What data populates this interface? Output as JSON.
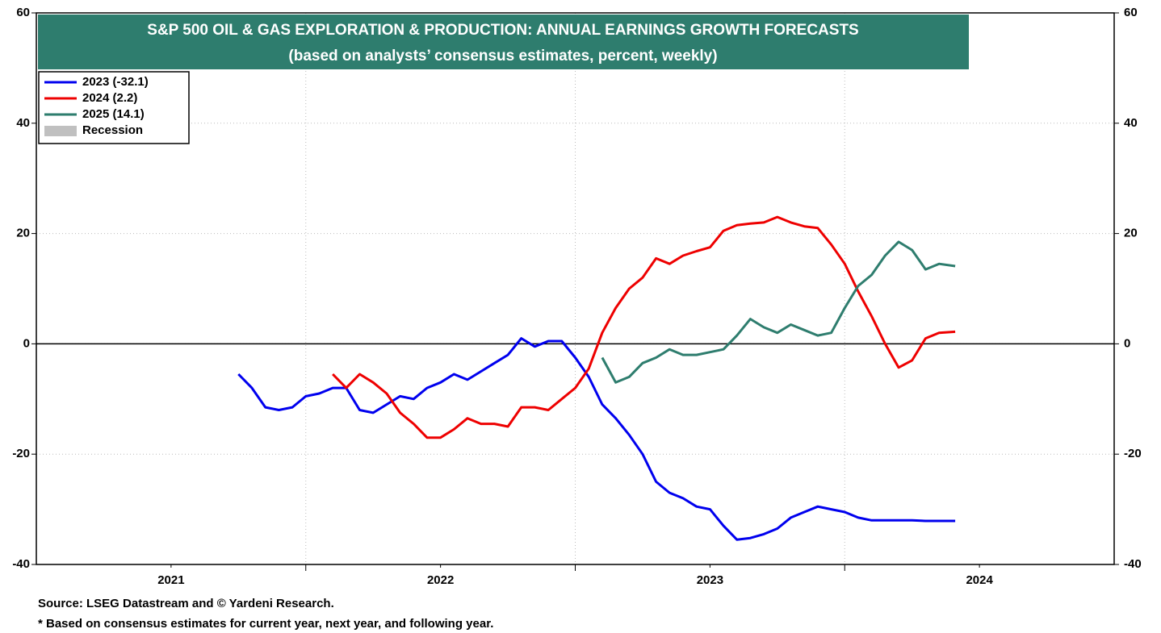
{
  "chart_data": {
    "type": "line",
    "title": "S&P 500  OIL & GAS EXPLORATION & PRODUCTION: ANNUAL EARNINGS GROWTH FORECASTS",
    "subtitle": "(based on analysts’ consensus estimates, percent, weekly)",
    "notes": [
      "Source: LSEG Datastream and © Yardeni Research.",
      "* Based on consensus estimates for current year, next year, and following year."
    ],
    "recession_label": "Recession",
    "recession_color": "#c0c0c0",
    "title_color": "#2e7d6e",
    "x": [
      2021.75,
      2021.8,
      2021.85,
      2021.9,
      2021.95,
      2022.0,
      2022.05,
      2022.1,
      2022.15,
      2022.2,
      2022.25,
      2022.3,
      2022.35,
      2022.4,
      2022.45,
      2022.5,
      2022.55,
      2022.6,
      2022.65,
      2022.7,
      2022.75,
      2022.8,
      2022.85,
      2022.9,
      2022.95,
      2023.0,
      2023.05,
      2023.1,
      2023.15,
      2023.2,
      2023.25,
      2023.3,
      2023.35,
      2023.4,
      2023.45,
      2023.5,
      2023.55,
      2023.6,
      2023.65,
      2023.7,
      2023.75,
      2023.8,
      2023.85,
      2023.9,
      2023.95,
      2024.0,
      2024.05,
      2024.1,
      2024.15,
      2024.2,
      2024.25,
      2024.3,
      2024.35,
      2024.41
    ],
    "series": [
      {
        "name": "2023 (-32.1)",
        "color": "#0000ee",
        "values": [
          -5.5,
          -8,
          -11.5,
          -12,
          -11.5,
          -9.5,
          -9,
          -8,
          -8,
          -12,
          -12.5,
          -11,
          -9.5,
          -10,
          -8,
          -7,
          -5.5,
          -6.5,
          -5,
          -3.5,
          -2,
          1,
          -0.5,
          0.5,
          0.5,
          -2.5,
          -6,
          -11,
          -13.5,
          -16.5,
          -20,
          -25,
          -27,
          -28,
          -29.5,
          -30,
          -33,
          -35.5,
          -35.2,
          -34.5,
          -33.5,
          -31.5,
          -30.5,
          -29.5,
          -30,
          -30.5,
          -31.5,
          -32,
          -32,
          -32,
          -32,
          -32.1,
          -32.1,
          -32.1
        ]
      },
      {
        "name": "2024 (2.2)",
        "color": "#ee0000",
        "values": [
          null,
          null,
          null,
          null,
          null,
          null,
          null,
          -5.5,
          -8,
          -5.5,
          -7,
          -9,
          -12.5,
          -14.5,
          -17,
          -17,
          -15.5,
          -13.5,
          -14.5,
          -14.5,
          -15,
          -11.5,
          -11.5,
          -12,
          -10,
          -8,
          -4.5,
          2,
          6.5,
          10,
          12,
          15.5,
          14.5,
          16,
          16.8,
          17.5,
          20.5,
          21.5,
          21.8,
          22,
          23,
          22,
          21.3,
          21,
          18,
          14.5,
          9.5,
          5,
          0,
          -4.3,
          -3,
          1,
          2,
          2.2
        ]
      },
      {
        "name": "2025 (14.1)",
        "color": "#2e7d6e",
        "values": [
          null,
          null,
          null,
          null,
          null,
          null,
          null,
          null,
          null,
          null,
          null,
          null,
          null,
          null,
          null,
          null,
          null,
          null,
          null,
          null,
          null,
          null,
          null,
          null,
          null,
          null,
          null,
          -2.5,
          -7,
          -6,
          -3.5,
          -2.5,
          -1,
          -2,
          -2,
          -1.5,
          -1,
          1.5,
          4.5,
          3,
          2,
          3.5,
          2.5,
          1.5,
          2,
          6.5,
          10.5,
          12.5,
          16,
          18.5,
          17,
          13.5,
          14.5,
          14.1
        ]
      }
    ],
    "xlim": [
      2021,
      2025
    ],
    "xticks": [
      {
        "value": 2021.5,
        "label": "2021"
      },
      {
        "value": 2022.5,
        "label": "2022"
      },
      {
        "value": 2023.5,
        "label": "2023"
      },
      {
        "value": 2024.5,
        "label": "2024"
      }
    ],
    "xgrid": [
      2022,
      2023,
      2024
    ],
    "ylim": [
      -40,
      60
    ],
    "yticks": [
      -40,
      -20,
      0,
      20,
      40,
      60
    ],
    "y2lim": [
      -40,
      60
    ],
    "y2ticks": [
      -40,
      -20,
      0,
      20,
      40,
      60
    ],
    "grid": true,
    "legend": "upper left"
  }
}
